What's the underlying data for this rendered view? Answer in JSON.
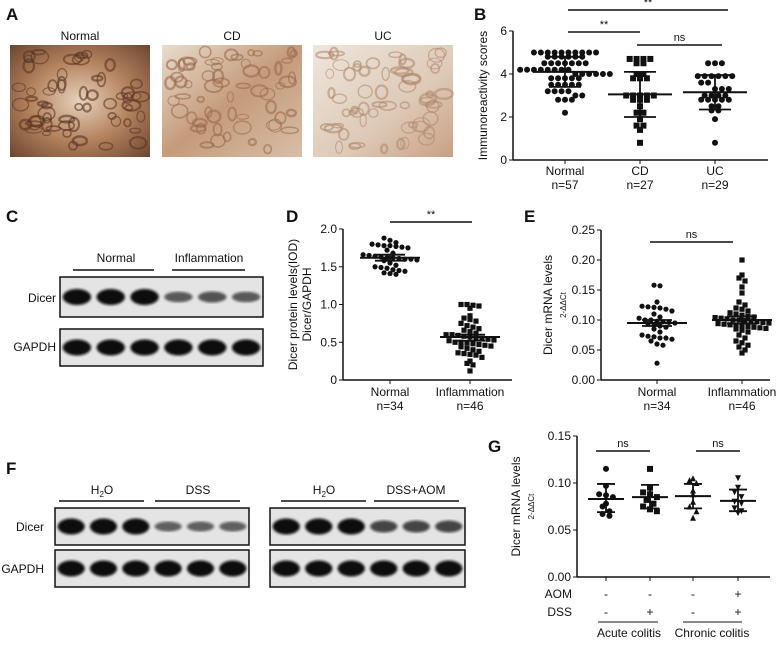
{
  "panel_labels": {
    "A": "A",
    "B": "B",
    "C": "C",
    "D": "D",
    "E": "E",
    "F": "F",
    "G": "G"
  },
  "panel_A": {
    "images": [
      {
        "label": "Normal"
      },
      {
        "label": "CD"
      },
      {
        "label": "UC"
      }
    ]
  },
  "panel_C": {
    "groups": [
      "Normal",
      "Inflammation"
    ],
    "rows": [
      "Dicer",
      "GAPDH"
    ],
    "band_intensity": {
      "Dicer": [
        1,
        1,
        1,
        0.45,
        0.5,
        0.45
      ],
      "GAPDH": [
        1,
        1,
        1,
        1,
        1,
        1
      ]
    }
  },
  "panel_F": {
    "left": {
      "groups": [
        "H2O",
        "DSS"
      ],
      "band_intensity": {
        "Dicer": [
          1,
          1,
          1,
          0.4,
          0.4,
          0.4
        ],
        "GAPDH": [
          1,
          1,
          1,
          1,
          1,
          1
        ]
      }
    },
    "right": {
      "groups": [
        "H2O",
        "DSS+AOM"
      ],
      "band_intensity": {
        "Dicer": [
          1,
          1,
          1,
          0.6,
          0.6,
          0.6
        ],
        "GAPDH": [
          1,
          1,
          1,
          1,
          1,
          1
        ]
      }
    },
    "rows": [
      "Dicer",
      "GAPDH"
    ]
  },
  "chart_data": [
    {
      "panel": "B",
      "type": "scatter",
      "ylabel": "Immunoreactivity scores",
      "ylim": [
        0,
        6
      ],
      "yticks": [
        "0",
        "2",
        "4",
        "6"
      ],
      "categories": [
        "Normal",
        "CD",
        "UC"
      ],
      "n_labels": [
        "n=57",
        "n=27",
        "n=29"
      ],
      "markers": [
        "circle",
        "square",
        "circle"
      ],
      "values": [
        [
          5,
          5,
          5,
          5,
          5,
          5,
          5,
          5,
          5,
          5,
          4.8,
          4.8,
          4.8,
          4.8,
          4.8,
          4.8,
          4.5,
          4.5,
          4.5,
          4.5,
          4.5,
          4.5,
          4.5,
          4.2,
          4.2,
          4.2,
          4.2,
          4.2,
          4.2,
          4.2,
          4.2,
          4,
          4,
          4,
          4,
          4,
          4,
          3.8,
          3.8,
          3.8,
          3.8,
          3.8,
          3.5,
          3.5,
          3.5,
          3.5,
          3.5,
          3.2,
          3.2,
          3.2,
          3.2,
          3,
          3,
          2.8,
          2.8,
          2.8,
          2.2
        ],
        [
          4.7,
          4.7,
          4.7,
          4.7,
          4.5,
          4.5,
          4,
          4,
          3.8,
          3.8,
          3.8,
          3,
          3,
          3,
          3,
          3,
          2.8,
          2.8,
          2.8,
          2.5,
          2.2,
          2.2,
          1.9,
          1.6,
          1.6,
          1.4,
          0.8
        ],
        [
          4.5,
          4.5,
          4.5,
          3.9,
          3.9,
          3.9,
          3.9,
          3.9,
          3.9,
          3.6,
          3.6,
          3.3,
          3.3,
          3.3,
          3,
          3,
          3,
          3,
          2.8,
          2.8,
          2.8,
          2.8,
          2.8,
          2.5,
          2.5,
          2.3,
          2.3,
          1.9,
          0.8
        ]
      ],
      "mean": [
        4.1,
        3.05,
        3.15
      ],
      "error": [
        [
          3.4,
          4.8
        ],
        [
          2.0,
          4.1
        ],
        [
          2.35,
          3.95
        ]
      ],
      "significance": [
        {
          "pair": [
            "Normal",
            "UC"
          ],
          "label": "**"
        },
        {
          "pair": [
            "Normal",
            "CD"
          ],
          "label": "**"
        },
        {
          "pair": [
            "CD",
            "UC"
          ],
          "label": "ns"
        }
      ]
    },
    {
      "panel": "D",
      "type": "scatter",
      "ylabel": "Dicer protein levels(IOD)",
      "ylabel2": "Dicer/GAPDH",
      "ylim": [
        0,
        2.0
      ],
      "yticks": [
        "0",
        "0.5",
        "1.0",
        "1.5",
        "2.0"
      ],
      "categories": [
        "Normal",
        "Inflammation"
      ],
      "n_labels": [
        "n=34",
        "n=46"
      ],
      "markers": [
        "circle",
        "square"
      ],
      "values": [
        [
          1.88,
          1.85,
          1.82,
          1.8,
          1.79,
          1.78,
          1.78,
          1.77,
          1.76,
          1.75,
          1.72,
          1.68,
          1.66,
          1.65,
          1.64,
          1.63,
          1.62,
          1.62,
          1.61,
          1.6,
          1.6,
          1.59,
          1.58,
          1.55,
          1.52,
          1.5,
          1.49,
          1.48,
          1.46,
          1.45,
          1.44,
          1.42,
          1.41,
          1.4
        ],
        [
          1.0,
          1.0,
          0.99,
          0.98,
          0.95,
          0.85,
          0.82,
          0.8,
          0.78,
          0.75,
          0.72,
          0.7,
          0.68,
          0.66,
          0.64,
          0.62,
          0.6,
          0.6,
          0.59,
          0.58,
          0.57,
          0.56,
          0.55,
          0.54,
          0.53,
          0.52,
          0.5,
          0.5,
          0.49,
          0.48,
          0.47,
          0.46,
          0.45,
          0.44,
          0.42,
          0.4,
          0.38,
          0.36,
          0.35,
          0.34,
          0.33,
          0.3,
          0.25,
          0.22,
          0.2,
          0.12
        ]
      ],
      "mean": [
        1.62,
        0.57
      ],
      "error": [
        [
          1.58,
          1.66
        ],
        [
          0.52,
          0.6
        ]
      ],
      "significance": [
        {
          "pair": [
            "Normal",
            "Inflammation"
          ],
          "label": "**"
        }
      ]
    },
    {
      "panel": "E",
      "type": "scatter",
      "ylabel": "Dicer mRNA levels",
      "ylabel2": "2-ΔΔCt",
      "ylim": [
        0,
        0.25
      ],
      "yticks": [
        "0.00",
        "0.05",
        "0.10",
        "0.15",
        "0.20",
        "0.25"
      ],
      "categories": [
        "Normal",
        "Inflammation"
      ],
      "n_labels": [
        "n=34",
        "n=46"
      ],
      "markers": [
        "circle",
        "square"
      ],
      "values": [
        [
          0.158,
          0.157,
          0.13,
          0.123,
          0.122,
          0.121,
          0.12,
          0.118,
          0.115,
          0.11,
          0.105,
          0.103,
          0.1,
          0.1,
          0.098,
          0.097,
          0.096,
          0.095,
          0.094,
          0.092,
          0.09,
          0.088,
          0.085,
          0.08,
          0.075,
          0.073,
          0.072,
          0.07,
          0.07,
          0.068,
          0.065,
          0.06,
          0.058,
          0.028
        ],
        [
          0.2,
          0.175,
          0.17,
          0.165,
          0.155,
          0.145,
          0.13,
          0.125,
          0.12,
          0.118,
          0.115,
          0.112,
          0.11,
          0.108,
          0.106,
          0.105,
          0.104,
          0.103,
          0.102,
          0.1,
          0.1,
          0.099,
          0.098,
          0.097,
          0.096,
          0.095,
          0.094,
          0.093,
          0.092,
          0.091,
          0.09,
          0.089,
          0.088,
          0.087,
          0.086,
          0.085,
          0.083,
          0.08,
          0.075,
          0.07,
          0.065,
          0.062,
          0.058,
          0.055,
          0.05,
          0.045
        ]
      ],
      "mean": [
        0.095,
        0.1
      ],
      "error": [
        [
          0.09,
          0.1
        ],
        [
          0.094,
          0.106
        ]
      ],
      "significance": [
        {
          "pair": [
            "Normal",
            "Inflammation"
          ],
          "label": "ns"
        }
      ]
    },
    {
      "panel": "G",
      "type": "scatter",
      "ylabel": "Dicer mRNA levels",
      "ylabel2": "2-ΔΔCt",
      "ylim": [
        0,
        0.15
      ],
      "yticks": [
        "0.00",
        "0.05",
        "0.10",
        "0.15"
      ],
      "row_labels": [
        "AOM",
        "DSS"
      ],
      "conditions": {
        "AOM": [
          "-",
          "-",
          "-",
          "+"
        ],
        "DSS": [
          "-",
          "+",
          "-",
          "+"
        ]
      },
      "group_labels": [
        "Acute colitis",
        "Chronic colitis"
      ],
      "markers": [
        "circle",
        "square",
        "triangle",
        "triangle-down"
      ],
      "values": [
        [
          0.115,
          0.097,
          0.088,
          0.087,
          0.085,
          0.078,
          0.075,
          0.07,
          0.067,
          0.065
        ],
        [
          0.115,
          0.095,
          0.09,
          0.088,
          0.085,
          0.082,
          0.078,
          0.075,
          0.072,
          0.07
        ],
        [
          0.105,
          0.103,
          0.1,
          0.092,
          0.088,
          0.08,
          0.075,
          0.07,
          0.063
        ],
        [
          0.105,
          0.095,
          0.09,
          0.085,
          0.08,
          0.078,
          0.073,
          0.07,
          0.068
        ]
      ],
      "mean": [
        0.083,
        0.085,
        0.086,
        0.081
      ],
      "error": [
        [
          0.069,
          0.099
        ],
        [
          0.073,
          0.098
        ],
        [
          0.073,
          0.099
        ],
        [
          0.07,
          0.093
        ]
      ],
      "significance": [
        {
          "pair": [
            0,
            1
          ],
          "label": "ns"
        },
        {
          "pair": [
            2,
            3
          ],
          "label": "ns"
        }
      ]
    }
  ]
}
